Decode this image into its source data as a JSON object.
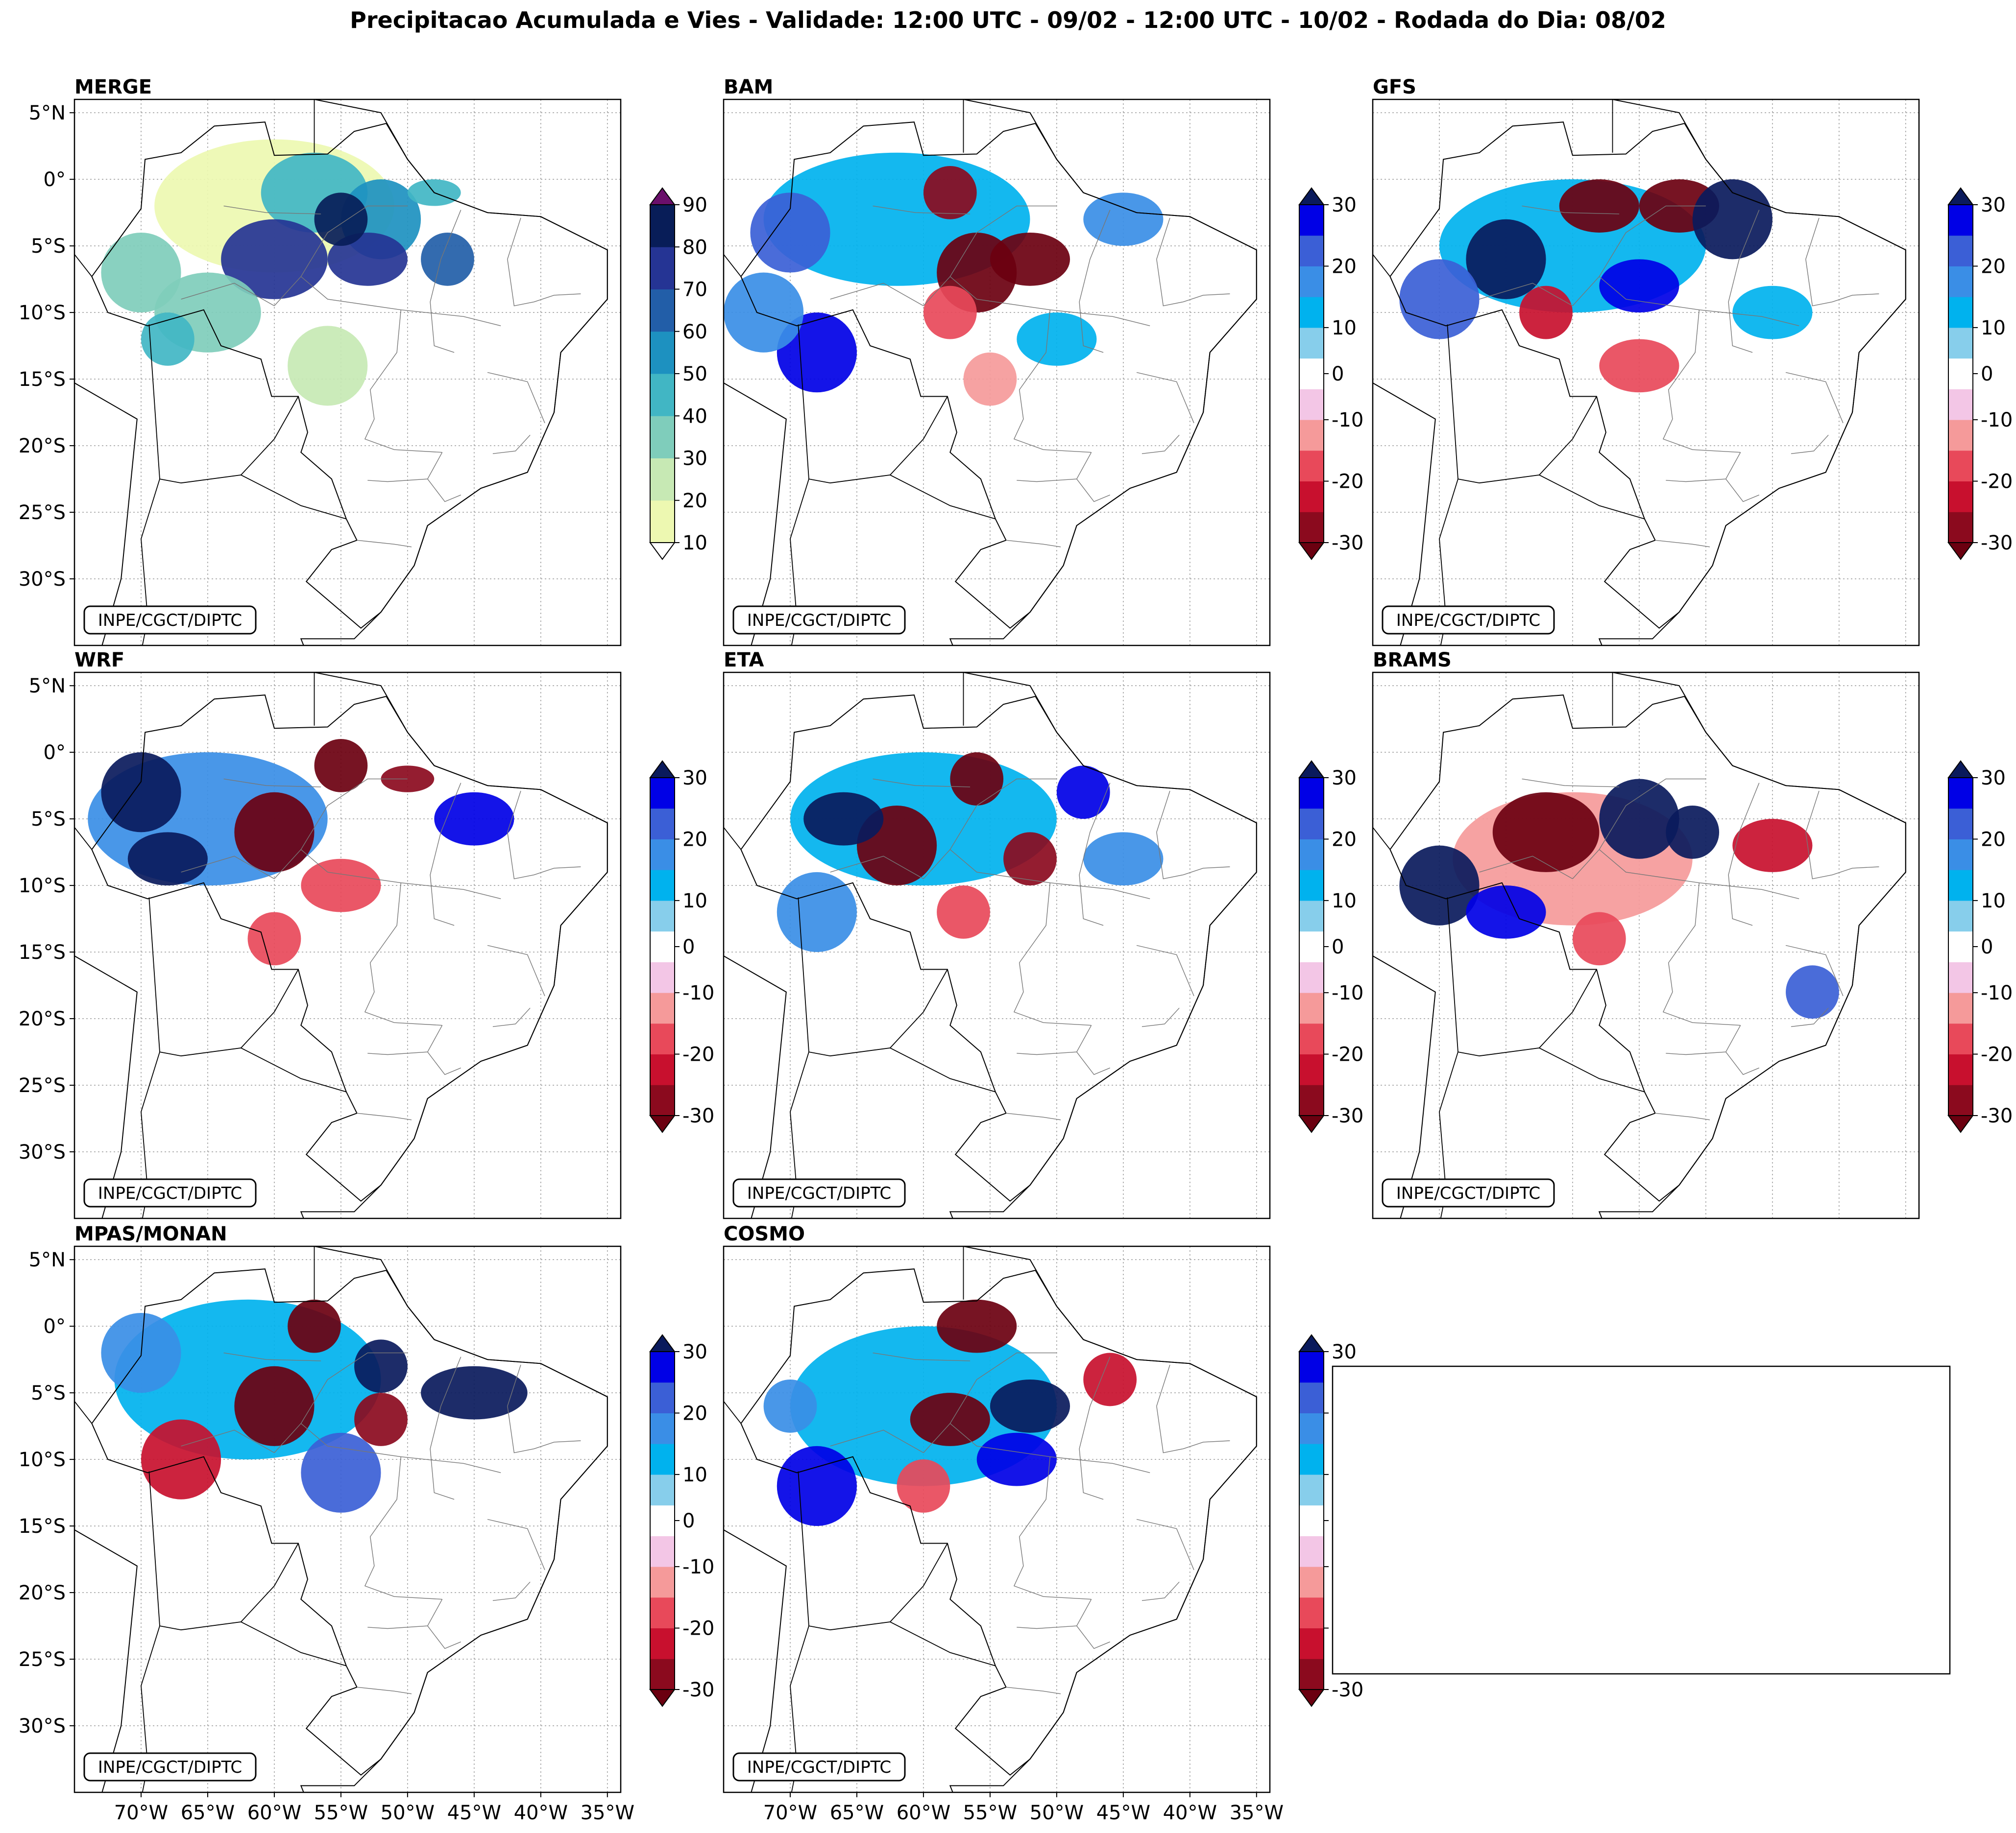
{
  "figure": {
    "title": "Precipitacao Acumulada e Vies - Validade: 12:00 UTC - 09/02 - 12:00 UTC - 10/02 - Rodada do Dia: 08/02"
  },
  "chart_data": {
    "type": "heatmap",
    "extent": {
      "lon": [
        -75,
        -34
      ],
      "lat": [
        -35,
        6
      ]
    },
    "lat_ticks": [
      {
        "value": 5,
        "label": "5°N"
      },
      {
        "value": 0,
        "label": "0°"
      },
      {
        "value": -5,
        "label": "5°S"
      },
      {
        "value": -10,
        "label": "10°S"
      },
      {
        "value": -15,
        "label": "15°S"
      },
      {
        "value": -20,
        "label": "20°S"
      },
      {
        "value": -25,
        "label": "25°S"
      },
      {
        "value": -30,
        "label": "30°S"
      }
    ],
    "lon_ticks": [
      {
        "value": -70,
        "label": "70°W"
      },
      {
        "value": -65,
        "label": "65°W"
      },
      {
        "value": -60,
        "label": "60°W"
      },
      {
        "value": -55,
        "label": "55°W"
      },
      {
        "value": -50,
        "label": "50°W"
      },
      {
        "value": -45,
        "label": "45°W"
      },
      {
        "value": -40,
        "label": "40°W"
      },
      {
        "value": -35,
        "label": "35°W"
      }
    ],
    "watermark": "INPE/CGCT/DIPTC",
    "colorbars": {
      "precip": {
        "levels": [
          10,
          20,
          30,
          40,
          50,
          60,
          70,
          80,
          90
        ],
        "tick_labels": [
          "10",
          "20",
          "30",
          "40",
          "50",
          "60",
          "70",
          "80",
          "90"
        ],
        "colors": [
          "#edf8b1",
          "#c7e9b4",
          "#7fcdbb",
          "#41b6c4",
          "#1d91c0",
          "#225ea8",
          "#253494",
          "#081d58"
        ],
        "over_color": "#6a0f6b",
        "under_color": "#ffffff"
      },
      "bias": {
        "levels": [
          -30,
          -25,
          -20,
          -15,
          -10,
          -5,
          5,
          10,
          15,
          20,
          25,
          30
        ],
        "tick_labels": [
          "-30",
          "-20",
          "-10",
          "0",
          "10",
          "20",
          "30"
        ],
        "tick_values": [
          -30,
          -20,
          -10,
          0,
          10,
          20,
          30
        ],
        "colors": [
          "#8b0a1e",
          "#c8102e",
          "#e8495a",
          "#f59a9a",
          "#f3c6e6",
          "#ffffff",
          "#87ceeb",
          "#00b2ee",
          "#3a8ee6",
          "#3b5fd6",
          "#0000e6"
        ],
        "over_color": "#0a1a5c",
        "under_color": "#6b0010"
      }
    },
    "panels": [
      {
        "name": "MERGE",
        "colorbar": "precip",
        "row": 0,
        "col": 0,
        "show_lat": true,
        "show_lon": false,
        "blobs": [
          [
            -60,
            -2,
            9,
            5,
            15
          ],
          [
            -57,
            -1,
            4,
            3,
            40
          ],
          [
            -52,
            -3,
            3,
            3,
            50
          ],
          [
            -60,
            -6,
            4,
            3,
            75
          ],
          [
            -53,
            -6,
            3,
            2,
            70
          ],
          [
            -47,
            -6,
            2,
            2,
            60
          ],
          [
            -70,
            -7,
            3,
            3,
            35
          ],
          [
            -65,
            -10,
            4,
            3,
            30
          ],
          [
            -68,
            -12,
            2,
            2,
            45
          ],
          [
            -56,
            -14,
            3,
            3,
            25
          ],
          [
            -55,
            -3,
            2,
            2,
            85
          ],
          [
            -48,
            -1,
            2,
            1,
            40
          ]
        ]
      },
      {
        "name": "BAM",
        "colorbar": "bias",
        "row": 0,
        "col": 1,
        "show_lat": false,
        "show_lon": false,
        "blobs": [
          [
            -62,
            -3,
            10,
            5,
            12
          ],
          [
            -56,
            -7,
            3,
            3,
            -32
          ],
          [
            -58,
            -1,
            2,
            2,
            -28
          ],
          [
            -52,
            -6,
            3,
            2,
            -35
          ],
          [
            -70,
            -4,
            3,
            3,
            22
          ],
          [
            -45,
            -3,
            3,
            2,
            18
          ],
          [
            -68,
            -13,
            3,
            3,
            25
          ],
          [
            -58,
            -10,
            2,
            2,
            -20
          ],
          [
            -50,
            -12,
            3,
            2,
            12
          ],
          [
            -72,
            -10,
            3,
            3,
            15
          ],
          [
            -55,
            -15,
            2,
            2,
            -15
          ]
        ]
      },
      {
        "name": "GFS",
        "colorbar": "bias",
        "row": 0,
        "col": 2,
        "show_lat": false,
        "show_lon": false,
        "blobs": [
          [
            -60,
            -5,
            10,
            5,
            14
          ],
          [
            -58,
            -2,
            3,
            2,
            -33
          ],
          [
            -52,
            -2,
            3,
            2,
            -32
          ],
          [
            -65,
            -6,
            3,
            3,
            35
          ],
          [
            -48,
            -3,
            3,
            3,
            35
          ],
          [
            -55,
            -8,
            3,
            2,
            25
          ],
          [
            -62,
            -10,
            2,
            2,
            -25
          ],
          [
            -70,
            -9,
            3,
            3,
            20
          ],
          [
            -55,
            -14,
            3,
            2,
            -18
          ],
          [
            -45,
            -10,
            3,
            2,
            12
          ]
        ]
      },
      {
        "name": "WRF",
        "colorbar": "bias",
        "row": 1,
        "col": 0,
        "show_lat": true,
        "show_lon": false,
        "blobs": [
          [
            -65,
            -5,
            9,
            5,
            18
          ],
          [
            -60,
            -6,
            3,
            3,
            -35
          ],
          [
            -55,
            -1,
            2,
            2,
            -32
          ],
          [
            -70,
            -3,
            3,
            3,
            30
          ],
          [
            -45,
            -5,
            3,
            2,
            25
          ],
          [
            -55,
            -10,
            3,
            2,
            -20
          ],
          [
            -68,
            -8,
            3,
            2,
            32
          ],
          [
            -60,
            -14,
            2,
            2,
            -18
          ],
          [
            -50,
            -2,
            2,
            1,
            -30
          ]
        ]
      },
      {
        "name": "ETA",
        "colorbar": "bias",
        "row": 1,
        "col": 1,
        "show_lat": false,
        "show_lon": false,
        "blobs": [
          [
            -60,
            -5,
            10,
            5,
            12
          ],
          [
            -62,
            -7,
            3,
            3,
            -35
          ],
          [
            -56,
            -2,
            2,
            2,
            -33
          ],
          [
            -52,
            -8,
            2,
            2,
            -30
          ],
          [
            -66,
            -5,
            3,
            2,
            30
          ],
          [
            -48,
            -3,
            2,
            2,
            28
          ],
          [
            -68,
            -12,
            3,
            3,
            18
          ],
          [
            -57,
            -12,
            2,
            2,
            -20
          ],
          [
            -45,
            -8,
            3,
            2,
            15
          ]
        ]
      },
      {
        "name": "BRAMS",
        "colorbar": "bias",
        "row": 1,
        "col": 2,
        "show_lat": false,
        "show_lon": false,
        "blobs": [
          [
            -60,
            -8,
            9,
            5,
            -14
          ],
          [
            -62,
            -6,
            4,
            3,
            -32
          ],
          [
            -55,
            -5,
            3,
            3,
            35
          ],
          [
            -51,
            -6,
            2,
            2,
            35
          ],
          [
            -70,
            -10,
            3,
            3,
            30
          ],
          [
            -45,
            -7,
            3,
            2,
            -25
          ],
          [
            -65,
            -12,
            3,
            2,
            28
          ],
          [
            -58,
            -14,
            2,
            2,
            -20
          ],
          [
            -42,
            -18,
            2,
            2,
            22
          ]
        ]
      },
      {
        "name": "MPAS/MONAN",
        "colorbar": "bias",
        "row": 2,
        "col": 0,
        "show_lat": true,
        "show_lon": true,
        "blobs": [
          [
            -62,
            -4,
            10,
            6,
            14
          ],
          [
            -60,
            -6,
            3,
            3,
            -35
          ],
          [
            -57,
            0,
            2,
            2,
            -32
          ],
          [
            -52,
            -7,
            2,
            2,
            -30
          ],
          [
            -45,
            -5,
            4,
            2,
            30
          ],
          [
            -52,
            -3,
            2,
            2,
            32
          ],
          [
            -55,
            -11,
            3,
            3,
            22
          ],
          [
            -67,
            -10,
            3,
            3,
            -22
          ],
          [
            -70,
            -2,
            3,
            3,
            18
          ]
        ]
      },
      {
        "name": "COSMO",
        "colorbar": "bias",
        "row": 2,
        "col": 1,
        "show_lat": false,
        "show_lon": true,
        "blobs": [
          [
            -60,
            -6,
            10,
            6,
            12
          ],
          [
            -58,
            -7,
            3,
            2,
            -33
          ],
          [
            -56,
            0,
            3,
            2,
            -32
          ],
          [
            -52,
            -6,
            3,
            2,
            30
          ],
          [
            -46,
            -4,
            2,
            2,
            -22
          ],
          [
            -68,
            -12,
            3,
            3,
            28
          ],
          [
            -60,
            -12,
            2,
            2,
            -20
          ],
          [
            -53,
            -10,
            3,
            2,
            25
          ],
          [
            -70,
            -6,
            2,
            2,
            15
          ]
        ]
      }
    ]
  }
}
